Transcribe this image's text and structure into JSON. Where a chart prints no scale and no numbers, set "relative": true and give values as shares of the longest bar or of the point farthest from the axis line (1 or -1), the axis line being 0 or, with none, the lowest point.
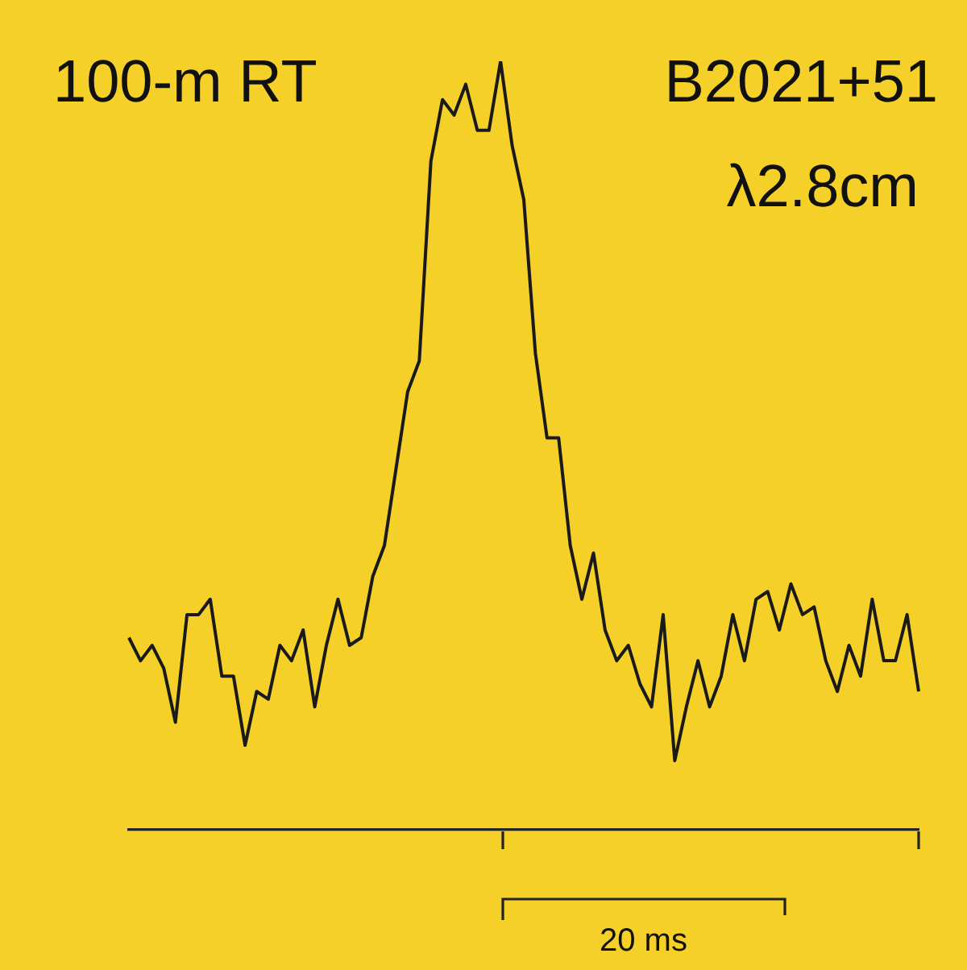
{
  "chart_data": {
    "type": "line",
    "relative": true,
    "color": "#1a1a1a",
    "marker": "none",
    "legend": false,
    "annotations": [
      "100-m RT",
      "B2021+51",
      "λ2.8cm",
      "20 ms"
    ],
    "categories": [
      null,
      null,
      null,
      null,
      null,
      null,
      null,
      null,
      null,
      null,
      null,
      null,
      null,
      null,
      null,
      null,
      null,
      null,
      null,
      null,
      null,
      null,
      null,
      null,
      null,
      null,
      null,
      null,
      null,
      null,
      null,
      null,
      null,
      null,
      null,
      null,
      null,
      null,
      null,
      null,
      null,
      null,
      null,
      null,
      null,
      null,
      null,
      null,
      null,
      null,
      null,
      null,
      null,
      null,
      null,
      null,
      null,
      null,
      null,
      null,
      null,
      null,
      null,
      null,
      null,
      null,
      null,
      null,
      null
    ],
    "values": [
      0.25,
      0.22,
      0.24,
      0.21,
      0.14,
      0.28,
      0.28,
      0.3,
      0.2,
      0.2,
      0.11,
      0.18,
      0.17,
      0.24,
      0.22,
      0.26,
      0.16,
      0.24,
      0.3,
      0.24,
      0.25,
      0.33,
      0.37,
      0.47,
      0.57,
      0.61,
      0.87,
      0.95,
      0.93,
      0.97,
      0.91,
      0.91,
      1,
      0.89,
      0.82,
      0.62,
      0.51,
      0.51,
      0.37,
      0.3,
      0.36,
      0.26,
      0.22,
      0.24,
      0.19,
      0.16,
      0.28,
      0.09,
      0.16,
      0.22,
      0.16,
      0.2,
      0.28,
      0.22,
      0.3,
      0.31,
      0.26,
      0.32,
      0.28,
      0.29,
      0.22,
      0.18,
      0.24,
      0.2,
      0.3,
      0.22,
      0.22,
      0.28,
      0.18
    ]
  }
}
